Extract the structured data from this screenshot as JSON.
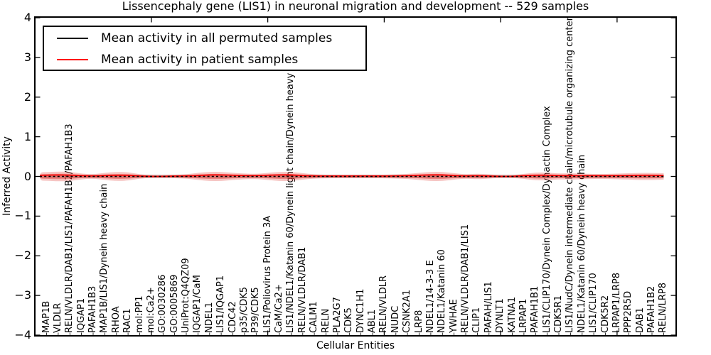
{
  "chart_data": {
    "type": "line",
    "title": "Lissencephaly gene (LIS1) in neuronal migration and development -- 529 samples",
    "xlabel": "Cellular Entities",
    "ylabel": "Inferred Activity",
    "ylim": [
      -4,
      4
    ],
    "grid": false,
    "legend_position": "upper left",
    "yticks": [
      {
        "value": 4,
        "label": "4"
      },
      {
        "value": 3,
        "label": "3"
      },
      {
        "value": 2,
        "label": "2"
      },
      {
        "value": 1,
        "label": "1"
      },
      {
        "value": 0,
        "label": "0"
      },
      {
        "value": -1,
        "label": "−1"
      },
      {
        "value": -2,
        "label": "−2"
      },
      {
        "value": -3,
        "label": "−3"
      },
      {
        "value": -4,
        "label": "−4"
      }
    ],
    "xtick_major_indices": [
      9,
      19,
      29,
      39,
      49
    ],
    "categories": [
      "MAP1B",
      "VLDLR",
      "RELN/VLDLR/DAB1/LIS1/PAFAH1B2/PAFAH1B3",
      "IQGAP1",
      "PAFAH1B3",
      "MAP1B/LIS1/Dynein heavy chain",
      "RHOA",
      "RAC1",
      "mol:PP1",
      "mol:Ca2+",
      "GO:0030286",
      "GO:0005869",
      "UniProt:Q4QZ09",
      "IQGAP1/CaM",
      "NDEL1",
      "LIS1/IQGAP1",
      "CDC42",
      "p35/CDK5",
      "P39/CDK5",
      "LIS1/Poliovirus Protein 3A",
      "CaM/Ca2+",
      "LIS1/NDEL1/Katanin 60/Dynein light chain/Dynein heavy chain",
      "RELN/VLDLR/DAB1",
      "CALM1",
      "RELN",
      "PLA2G7",
      "CDK5",
      "DYNC1H1",
      "ABL1",
      "RELN/VLDLR",
      "NUDC",
      "CSNK2A1",
      "LRP8",
      "NDEL1/14-3-3 E",
      "NDEL1/Katanin 60",
      "YWHAE",
      "RELN/VLDLR/DAB1/LIS1",
      "CLIP1",
      "PAFAH/LIS1",
      "DYNLT1",
      "KATNA1",
      "LRPAP1",
      "PAFAH1B1",
      "LIS1/CLIP170/Dynein Complex/Dynactin Complex",
      "CDK5R1",
      "LIS1/NudC/Dynein intermediate chain/microtubule organizing center",
      "NDEL1/Katanin 60/Dynein heavy chain",
      "LIS1/CLIP170",
      "CDK5R2",
      "LRPAP1/LRP8",
      "PPP2R5D",
      "DAB1",
      "PAFAH1B2",
      "RELN/LRP8"
    ],
    "series": [
      {
        "name": "Mean activity in all permuted samples",
        "color": "#000000",
        "style": "dashed",
        "values": [
          0,
          0,
          0,
          0,
          0,
          0,
          0,
          0,
          0,
          0,
          0,
          0,
          0,
          0,
          0,
          0,
          0,
          0,
          0,
          0,
          0,
          0,
          0,
          0,
          0,
          0,
          0,
          0,
          0,
          0,
          0,
          0,
          0,
          0,
          0,
          0,
          0,
          0,
          0,
          0,
          0,
          0,
          0,
          0,
          0,
          0,
          0,
          0,
          0,
          0,
          0,
          0,
          0,
          0
        ]
      },
      {
        "name": "Mean activity in patient samples",
        "color": "#ff0000",
        "style": "solid",
        "values": [
          0.03,
          0.04,
          0.03,
          0.02,
          0.01,
          0.02,
          0.03,
          0.03,
          0.01,
          0.0,
          0.0,
          0.01,
          0.01,
          0.02,
          0.04,
          0.04,
          0.03,
          0.02,
          0.02,
          0.03,
          0.04,
          0.04,
          0.02,
          0.01,
          0.01,
          0.01,
          0.01,
          0.01,
          0.01,
          0.01,
          0.01,
          0.02,
          0.03,
          0.04,
          0.04,
          0.02,
          0.01,
          0.02,
          0.01,
          0.0,
          0.0,
          0.02,
          0.03,
          0.03,
          0.02,
          0.02,
          0.02,
          0.02,
          0.02,
          0.02,
          0.02,
          0.03,
          0.03,
          0.02
        ]
      }
    ],
    "patient_distribution_half_width": [
      0.107,
      0.125,
      0.116,
      0.072,
      0.054,
      0.089,
      0.116,
      0.107,
      0.054,
      0.036,
      0.036,
      0.045,
      0.054,
      0.089,
      0.116,
      0.116,
      0.089,
      0.072,
      0.063,
      0.089,
      0.116,
      0.116,
      0.081,
      0.054,
      0.045,
      0.045,
      0.045,
      0.045,
      0.045,
      0.045,
      0.054,
      0.063,
      0.089,
      0.116,
      0.116,
      0.081,
      0.054,
      0.072,
      0.054,
      0.036,
      0.036,
      0.063,
      0.098,
      0.098,
      0.072,
      0.081,
      0.072,
      0.063,
      0.063,
      0.072,
      0.081,
      0.089,
      0.089,
      0.081
    ],
    "permuted_band_half_width": 0.045,
    "colors": {
      "patient_band_fill": "rgba(222,45,38,0.28)",
      "patient_band_core": "rgba(222,45,38,0.42)",
      "permuted_band_fill": "#999999",
      "axis": "#000000"
    }
  }
}
